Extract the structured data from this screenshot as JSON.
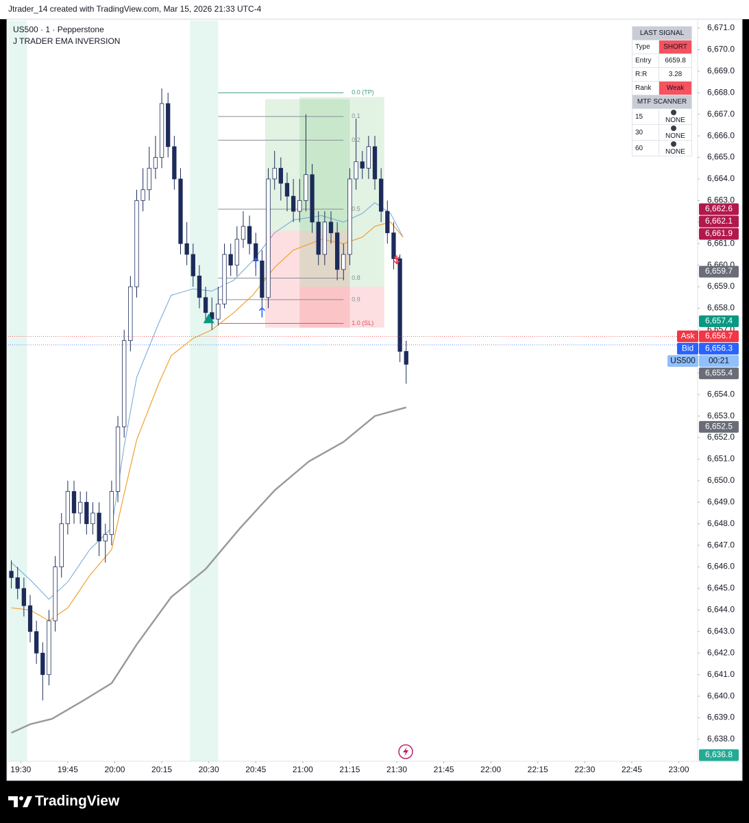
{
  "header": {
    "text": "Jtrader_14 created with TradingView.com, Mar 15, 2026 21:33 UTC-4"
  },
  "footer": {
    "brand": "TradingView"
  },
  "signal_table": {
    "title": "LAST SIGNAL",
    "rows": [
      [
        "Type",
        "SHORT"
      ],
      [
        "Entry",
        6659.8
      ],
      [
        "R:R",
        3.28
      ],
      [
        "Rank",
        "Weak"
      ]
    ],
    "scanner_title": "MTF SCANNER",
    "scanner_rows": [
      [
        15,
        "NONE"
      ],
      [
        30,
        "NONE"
      ],
      [
        60,
        "NONE"
      ]
    ]
  },
  "chart_data": {
    "type": "candlestick",
    "symbol": "US500 · 1 · Pepperstone",
    "indicator": "J TRADER EMA INVERSION",
    "up_color": "#ffffff",
    "down_color": "#1c2b5a",
    "x": [
      "19:27",
      "19:29",
      "19:31",
      "19:33",
      "19:35",
      "19:37",
      "19:39",
      "19:41",
      "19:43",
      "19:45",
      "19:47",
      "19:49",
      "19:51",
      "19:53",
      "19:55",
      "19:57",
      "19:59",
      "20:01",
      "20:03",
      "20:05",
      "20:07",
      "20:09",
      "20:11",
      "20:13",
      "20:15",
      "20:17",
      "20:19",
      "20:21",
      "20:23",
      "20:25",
      "20:27",
      "20:29",
      "20:31",
      "20:33",
      "20:35",
      "20:37",
      "20:39",
      "20:41",
      "20:43",
      "20:45",
      "20:47",
      "20:49",
      "20:51",
      "20:53",
      "20:55",
      "20:57",
      "20:59",
      "21:01",
      "21:03",
      "21:05",
      "21:07",
      "21:09",
      "21:11",
      "21:13",
      "21:15",
      "21:17",
      "21:19",
      "21:21",
      "21:23",
      "21:25",
      "21:27",
      "21:29",
      "21:31",
      "21:33"
    ],
    "open": [
      6645.8,
      6645.5,
      6645.0,
      6644.2,
      6643.0,
      6642.0,
      6641.0,
      6643.5,
      6646.0,
      6648.0,
      6649.5,
      6648.5,
      6649.0,
      6648.0,
      6648.5,
      6647.2,
      6647.5,
      6649.5,
      6652.5,
      6656.5,
      6659.0,
      6663.0,
      6663.5,
      6664.5,
      6665.0,
      6667.5,
      6665.5,
      6664.0,
      6661.0,
      6660.5,
      6659.5,
      6658.5,
      6657.8,
      6657.5,
      6658.2,
      6660.5,
      6660.0,
      6661.2,
      6661.8,
      6661.0,
      6660.2,
      6658.5,
      6664.0,
      6664.5,
      6663.8,
      6663.2,
      6662.5,
      6663.0,
      6664.2,
      6662.0,
      6660.5,
      6662.0,
      6661.5,
      6659.8,
      6660.5,
      6664.0,
      6664.8,
      6664.5,
      6665.5,
      6664.0,
      6662.5,
      6661.5,
      6660.3,
      6656.0
    ],
    "high": [
      6646.3,
      6646.0,
      6645.5,
      6644.7,
      6643.5,
      6642.5,
      6644.0,
      6646.5,
      6648.5,
      6650.0,
      6650.0,
      6649.5,
      6649.5,
      6649.0,
      6649.0,
      6648.0,
      6650.0,
      6653.0,
      6657.0,
      6659.5,
      6663.5,
      6664.5,
      6665.5,
      6666.0,
      6668.2,
      6668.0,
      6666.0,
      6664.5,
      6662.0,
      6661.0,
      6660.0,
      6659.0,
      6658.5,
      6659.0,
      6661.0,
      6661.0,
      6661.8,
      6662.5,
      6662.3,
      6661.5,
      6660.7,
      6664.5,
      6665.3,
      6665.0,
      6664.3,
      6664.0,
      6664.0,
      6667.0,
      6664.7,
      6662.5,
      6662.5,
      6662.5,
      6662.0,
      6661.0,
      6664.5,
      6666.8,
      6665.3,
      6666.0,
      6666.0,
      6664.5,
      6663.0,
      6662.0,
      6660.5,
      6656.5
    ],
    "low": [
      6645.0,
      6644.5,
      6643.7,
      6642.5,
      6641.5,
      6639.8,
      6640.5,
      6643.0,
      6645.5,
      6647.5,
      6648.0,
      6648.0,
      6647.5,
      6647.5,
      6646.5,
      6646.2,
      6647.0,
      6649.0,
      6652.0,
      6656.0,
      6658.5,
      6662.5,
      6663.0,
      6664.0,
      6664.5,
      6665.0,
      6663.5,
      6660.5,
      6660.0,
      6659.0,
      6658.0,
      6657.3,
      6657.0,
      6657.2,
      6658.0,
      6659.5,
      6659.5,
      6660.8,
      6660.5,
      6659.5,
      6657.6,
      6658.0,
      6663.5,
      6663.0,
      6662.5,
      6662.0,
      6662.0,
      6662.5,
      6661.5,
      6660.0,
      6660.0,
      6661.0,
      6659.3,
      6659.3,
      6660.0,
      6663.5,
      6664.0,
      6664.0,
      6663.5,
      6662.0,
      6661.0,
      6659.8,
      6655.5,
      6654.5
    ],
    "close": [
      6645.5,
      6645.0,
      6644.2,
      6643.0,
      6642.0,
      6641.0,
      6643.5,
      6646.0,
      6648.0,
      6649.5,
      6648.5,
      6649.0,
      6648.0,
      6648.5,
      6647.2,
      6647.5,
      6649.5,
      6652.5,
      6656.5,
      6659.0,
      6663.0,
      6663.5,
      6664.5,
      6665.0,
      6667.5,
      6665.5,
      6664.0,
      6661.0,
      6660.5,
      6659.5,
      6658.5,
      6657.8,
      6657.5,
      6658.2,
      6660.5,
      6660.0,
      6661.2,
      6661.8,
      6661.0,
      6660.2,
      6658.5,
      6664.0,
      6664.5,
      6663.8,
      6663.2,
      6662.5,
      6663.0,
      6664.2,
      6662.0,
      6660.5,
      6662.0,
      6661.5,
      6659.8,
      6660.5,
      6664.0,
      6664.8,
      6664.5,
      6665.5,
      6664.0,
      6662.5,
      6661.5,
      6660.3,
      6656.0,
      6655.4
    ],
    "lines": [
      {
        "color": "#9a9a9a",
        "width": 2.5,
        "x": [
          "19:27",
          "19:33",
          "19:40",
          "19:50",
          "19:59",
          "20:07",
          "20:18",
          "20:29",
          "20:40",
          "20:51",
          "21:02",
          "21:13",
          "21:23",
          "21:33"
        ],
        "values": [
          6638.3,
          6638.7,
          6638.95,
          6639.8,
          6640.6,
          6642.4,
          6644.6,
          6645.9,
          6647.8,
          6649.55,
          6650.9,
          6651.8,
          6653.0,
          6653.4
        ]
      },
      {
        "color": "#6fa3d8",
        "width": 1,
        "x": [
          "19:27",
          "19:33",
          "19:39",
          "19:45",
          "19:52",
          "19:59",
          "20:03",
          "20:07",
          "20:14",
          "20:18",
          "20:25",
          "20:31",
          "20:38",
          "20:44",
          "20:51",
          "20:57",
          "21:06",
          "21:13",
          "21:19",
          "21:23",
          "21:28",
          "21:32"
        ],
        "values": [
          6646.2,
          6645.4,
          6644.5,
          6645.3,
          6646.8,
          6647.8,
          6651.6,
          6654.8,
          6657.3,
          6658.6,
          6658.9,
          6658.8,
          6659.3,
          6660.2,
          6661.5,
          6662.1,
          6662.3,
          6662.0,
          6662.4,
          6662.9,
          6662.4,
          6661.3
        ]
      },
      {
        "color": "#f0a030",
        "width": 1.2,
        "x": [
          "19:27",
          "19:33",
          "19:39",
          "19:45",
          "19:52",
          "19:59",
          "20:03",
          "20:07",
          "20:14",
          "20:18",
          "20:25",
          "20:31",
          "20:38",
          "20:44",
          "20:51",
          "20:57",
          "21:06",
          "21:13",
          "21:19",
          "21:23",
          "21:28",
          "21:32"
        ],
        "values": [
          6644.1,
          6644.0,
          6643.5,
          6644.1,
          6645.6,
          6646.8,
          6649.4,
          6651.9,
          6654.5,
          6655.8,
          6656.6,
          6657.0,
          6657.8,
          6658.6,
          6659.9,
          6660.7,
          6661.2,
          6661.0,
          6661.3,
          6661.8,
          6662.0,
          6661.3
        ]
      }
    ],
    "sessions": [
      {
        "start": "19:26",
        "end": "19:32"
      },
      {
        "start": "20:24",
        "end": "20:33"
      }
    ],
    "session_color": "#e6f6f1",
    "positions": [
      {
        "start": "20:48",
        "end": "21:15",
        "tp": 6667.7,
        "entry": 6661.6,
        "sl": 6657.1
      },
      {
        "start": "20:59",
        "end": "21:26",
        "tp": 6667.8,
        "entry": 6659.0,
        "sl": 6657.1
      }
    ],
    "fib": {
      "start": "20:33",
      "end": "21:13",
      "levels": [
        {
          "label": "0.0 (TP)",
          "price": 6668.0,
          "color": "#3d9a80"
        },
        {
          "label": "0.1",
          "price": 6666.9,
          "color": "#8a8d96"
        },
        {
          "label": "0.2",
          "price": 6665.8,
          "color": "#8a8d96"
        },
        {
          "label": "0.5",
          "price": 6662.6,
          "color": "#8a8d96"
        },
        {
          "label": "0.8",
          "price": 6659.4,
          "color": "#8a8d96"
        },
        {
          "label": "0.9",
          "price": 6658.4,
          "color": "#8a8d96"
        },
        {
          "label": "1.0 (SL)",
          "price": 6657.3,
          "color": "#e0505c"
        }
      ]
    },
    "signals": [
      {
        "shape": "arrow-up",
        "x": "20:45",
        "value": 6660.1,
        "color": "#2962ff"
      },
      {
        "shape": "arrow-up",
        "x": "20:47",
        "value": 6657.8,
        "color": "#2962ff"
      },
      {
        "shape": "triangle-up",
        "x": "20:30",
        "value": 6657.5,
        "color": "#089981"
      },
      {
        "shape": "arrow-down",
        "x": "21:30",
        "value": 6660.2,
        "color": "#f23645"
      }
    ],
    "price_labels": [
      {
        "value": 6662.6,
        "label": "6,662.6",
        "color": "#b2184c"
      },
      {
        "value": 6662.1,
        "label": "6,662.1",
        "color": "#b2184c"
      },
      {
        "value": 6661.9,
        "label": "6,661.9",
        "color": "#b2184c"
      },
      {
        "value": 6659.7,
        "label": "6,659.7",
        "color": "#6a6d78"
      },
      {
        "value": 6657.4,
        "label": "6,657.4",
        "color": "#089981"
      },
      {
        "value": 6656.7,
        "label": "6,656.7",
        "tag": "Ask",
        "color": "#f23645",
        "dotted_line": true
      },
      {
        "value": 6656.3,
        "label": "6,656.3",
        "tag": "Bid",
        "color": "#2962ff",
        "dotted_line": true
      },
      {
        "value": 6656.0,
        "label": "00:21",
        "tag": "US500",
        "color": "#90bff9",
        "text_color": "#131722"
      },
      {
        "value": 6655.4,
        "label": "6,655.4",
        "color": "#6a6d78"
      },
      {
        "value": 6652.5,
        "label": "6,652.5",
        "color": "#6a6d78"
      },
      {
        "value": 6636.8,
        "label": "6,636.8",
        "color": "#22ab94"
      }
    ],
    "xlim": [
      "19:26",
      "23:06"
    ],
    "xticks": [
      "19:30",
      "19:45",
      "20:00",
      "20:15",
      "20:30",
      "20:45",
      "21:00",
      "21:15",
      "21:30",
      "21:45",
      "22:00",
      "22:15",
      "22:30",
      "22:45",
      "23:00"
    ],
    "ylim": [
      6636.98,
      6671.35
    ],
    "yticks": [
      {
        "value": 6638,
        "label": "6,638.0"
      },
      {
        "value": 6639,
        "label": "6,639.0"
      },
      {
        "value": 6640,
        "label": "6,640.0"
      },
      {
        "value": 6641,
        "label": "6,641.0"
      },
      {
        "value": 6642,
        "label": "6,642.0"
      },
      {
        "value": 6643,
        "label": "6,643.0"
      },
      {
        "value": 6644,
        "label": "6,644.0"
      },
      {
        "value": 6645,
        "label": "6,645.0"
      },
      {
        "value": 6646,
        "label": "6,646.0"
      },
      {
        "value": 6647,
        "label": "6,647.0"
      },
      {
        "value": 6648,
        "label": "6,648.0"
      },
      {
        "value": 6649,
        "label": "6,649.0"
      },
      {
        "value": 6650,
        "label": "6,650.0"
      },
      {
        "value": 6651,
        "label": "6,651.0"
      },
      {
        "value": 6652,
        "label": "6,652.0"
      },
      {
        "value": 6653,
        "label": "6,653.0"
      },
      {
        "value": 6654,
        "label": "6,654.0"
      },
      {
        "value": 6655,
        "label": "6,655.0"
      },
      {
        "value": 6656,
        "label": "6,656.0"
      },
      {
        "value": 6657,
        "label": "6,657.0"
      },
      {
        "value": 6658,
        "label": "6,658.0"
      },
      {
        "value": 6659,
        "label": "6,659.0"
      },
      {
        "value": 6660,
        "label": "6,660.0"
      },
      {
        "value": 6661,
        "label": "6,661.0"
      },
      {
        "value": 6662,
        "label": "6,662.0"
      },
      {
        "value": 6663,
        "label": "6,663.0"
      },
      {
        "value": 6664,
        "label": "6,664.0"
      },
      {
        "value": 6665,
        "label": "6,665.0"
      },
      {
        "value": 6666,
        "label": "6,666.0"
      },
      {
        "value": 6667,
        "label": "6,667.0"
      },
      {
        "value": 6668,
        "label": "6,668.0"
      },
      {
        "value": 6669,
        "label": "6,669.0"
      },
      {
        "value": 6670,
        "label": "6,670.0"
      },
      {
        "value": 6671,
        "label": "6,671.0"
      }
    ],
    "grid": false
  }
}
